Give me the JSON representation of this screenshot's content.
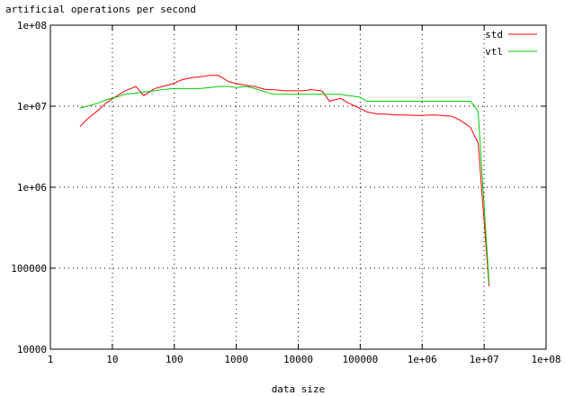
{
  "chart_data": {
    "type": "line",
    "title": "artificial operations per second",
    "xlabel": "data size",
    "ylabel": "",
    "x_scale": "log",
    "y_scale": "log",
    "xlim": [
      1,
      100000000
    ],
    "ylim": [
      10000,
      100000000
    ],
    "x_ticks": [
      {
        "value": 1,
        "label": "1"
      },
      {
        "value": 10,
        "label": "10"
      },
      {
        "value": 100,
        "label": "100"
      },
      {
        "value": 1000,
        "label": "1000"
      },
      {
        "value": 10000,
        "label": "10000"
      },
      {
        "value": 100000,
        "label": "100000"
      },
      {
        "value": 1000000,
        "label": "1e+06"
      },
      {
        "value": 10000000,
        "label": "1e+07"
      },
      {
        "value": 100000000,
        "label": "1e+08"
      }
    ],
    "y_ticks": [
      {
        "value": 10000,
        "label": "10000"
      },
      {
        "value": 100000,
        "label": "100000"
      },
      {
        "value": 1000000,
        "label": "1e+06"
      },
      {
        "value": 10000000,
        "label": "1e+07"
      },
      {
        "value": 100000000,
        "label": "1e+08"
      }
    ],
    "grid": true,
    "legend_position": "top-right",
    "series": [
      {
        "name": "std",
        "color": "#ff0000",
        "x": [
          3,
          4,
          6,
          8,
          12,
          16,
          24,
          32,
          48,
          64,
          96,
          128,
          192,
          256,
          384,
          512,
          768,
          1000,
          1500,
          2000,
          3000,
          4000,
          6000,
          8000,
          12000,
          16000,
          24000,
          32000,
          48000,
          64000,
          96000,
          128000,
          192000,
          256000,
          384000,
          512000,
          768000,
          1000000,
          1500000,
          2000000,
          3000000,
          4000000,
          6000000,
          8000000,
          12000000
        ],
        "y": [
          5600000,
          7000000,
          9000000,
          11000000,
          13500000,
          15500000,
          17500000,
          13500000,
          16500000,
          17500000,
          19000000,
          21000000,
          22500000,
          23000000,
          24000000,
          24000000,
          20000000,
          19000000,
          18000000,
          17500000,
          16000000,
          16000000,
          15500000,
          15500000,
          15500000,
          16000000,
          15500000,
          11500000,
          12500000,
          11000000,
          9500000,
          8500000,
          8000000,
          8000000,
          7800000,
          7800000,
          7700000,
          7700000,
          7800000,
          7700000,
          7500000,
          6800000,
          5500000,
          3500000,
          60000
        ]
      },
      {
        "name": "vtl",
        "color": "#00cc00",
        "x": [
          3,
          4,
          6,
          8,
          12,
          16,
          24,
          32,
          48,
          64,
          96,
          128,
          192,
          256,
          384,
          512,
          768,
          1000,
          1500,
          2000,
          3000,
          4000,
          6000,
          8000,
          12000,
          16000,
          24000,
          32000,
          48000,
          64000,
          96000,
          128000,
          192000,
          256000,
          384000,
          512000,
          768000,
          1000000,
          1500000,
          2000000,
          3000000,
          4000000,
          6000000,
          7000000,
          8000000,
          12000000
        ],
        "y": [
          9500000,
          10000000,
          11000000,
          12000000,
          13000000,
          14000000,
          14500000,
          15000000,
          15500000,
          16000000,
          16500000,
          16500000,
          16500000,
          16500000,
          17000000,
          17500000,
          17500000,
          17000000,
          17500000,
          16500000,
          15000000,
          14000000,
          14000000,
          14000000,
          14000000,
          14000000,
          14000000,
          14000000,
          14000000,
          13500000,
          13000000,
          11500000,
          11500000,
          11500000,
          11500000,
          11500000,
          11500000,
          11500000,
          11500000,
          11500000,
          11500000,
          11500000,
          11500000,
          10000000,
          8500000,
          65000
        ]
      }
    ]
  }
}
